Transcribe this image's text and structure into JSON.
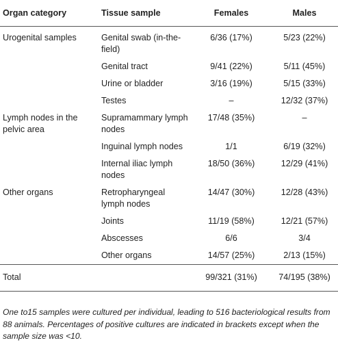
{
  "header": {
    "organ_category": "Organ category",
    "tissue_sample": "Tissue sample",
    "females": "Females",
    "males": "Males"
  },
  "rows": [
    {
      "category": "Urogenital samples",
      "tissue": "Genital swab (in-the-field)",
      "females": "6/36 (17%)",
      "males": "5/23 (22%)"
    },
    {
      "category": "",
      "tissue": "Genital tract",
      "females": "9/41 (22%)",
      "males": "5/11 (45%)"
    },
    {
      "category": "",
      "tissue": "Urine or bladder",
      "females": "3/16 (19%)",
      "males": "5/15 (33%)"
    },
    {
      "category": "",
      "tissue": "Testes",
      "females": "–",
      "males": "12/32 (37%)"
    },
    {
      "category": "Lymph nodes in the pelvic area",
      "tissue": "Supramammary lymph nodes",
      "females": "17/48 (35%)",
      "males": "–"
    },
    {
      "category": "",
      "tissue": "Inguinal lymph nodes",
      "females": "1/1",
      "males": "6/19 (32%)"
    },
    {
      "category": "",
      "tissue": "Internal iliac lymph nodes",
      "females": "18/50 (36%)",
      "males": "12/29 (41%)"
    },
    {
      "category": "Other organs",
      "tissue": "Retropharyngeal lymph nodes",
      "females": "14/47 (30%)",
      "males": "12/28 (43%)"
    },
    {
      "category": "",
      "tissue": "Joints",
      "females": "11/19 (58%)",
      "males": "12/21 (57%)"
    },
    {
      "category": "",
      "tissue": "Abscesses",
      "females": "6/6",
      "males": "3/4"
    },
    {
      "category": "",
      "tissue": "Other organs",
      "females": "14/57 (25%)",
      "males": "2/13 (15%)"
    }
  ],
  "total": {
    "label": "Total",
    "females": "99/321 (31%)",
    "males": "74/195 (38%)"
  },
  "footnote": "One to15 samples were cultured per individual, leading to 516 bacteriological results from 88 animals. Percentages of positive cultures are indicated in brackets except when the sample size was <10."
}
